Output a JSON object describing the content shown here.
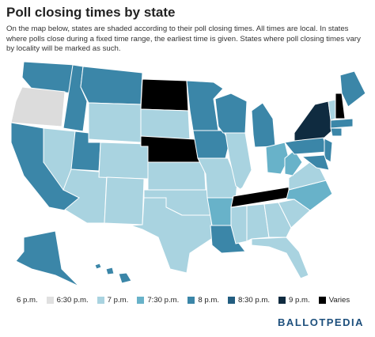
{
  "header": {
    "title": "Poll closing times by state",
    "description": "On the map below, states are shaded according to their poll closing times. All times are local. In states where polls close during a fixed time range, the earliest time is given. States where poll closing times vary by locality will be marked as such."
  },
  "legend": [
    {
      "label": "6 p.m.",
      "color": "#ffffff"
    },
    {
      "label": "6:30 p.m.",
      "color": "#e0e0e0"
    },
    {
      "label": "7 p.m.",
      "color": "#a9d3e0"
    },
    {
      "label": "7:30 p.m.",
      "color": "#68b2c9"
    },
    {
      "label": "8 p.m.",
      "color": "#3b86a8"
    },
    {
      "label": "8:30 p.m.",
      "color": "#225d80"
    },
    {
      "label": "9 p.m.",
      "color": "#0f2b40"
    },
    {
      "label": "Varies",
      "color": "#000000"
    }
  ],
  "brand": "BALLOTPEDIA"
}
